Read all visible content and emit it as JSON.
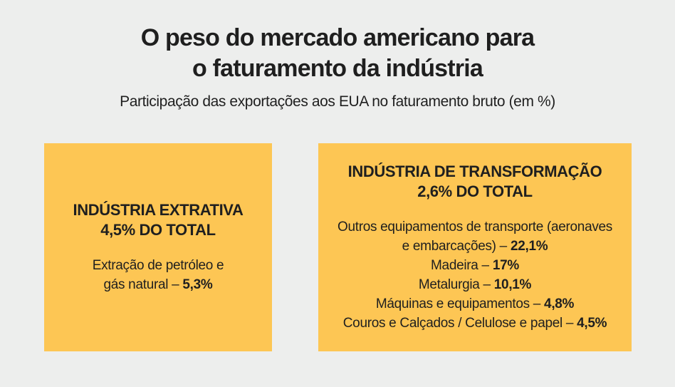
{
  "page": {
    "background_color": "#EDEEED",
    "card_color": "#FDC654",
    "text_color": "#1F1F1F"
  },
  "header": {
    "title_lines": [
      "O peso do mercado americano para",
      "o faturamento da indústria"
    ],
    "subtitle": "Participação das exportações aos EUA no faturamento bruto (em %)"
  },
  "cards": [
    {
      "heading_lines": [
        "INDÚSTRIA EXTRATIVA",
        "4,5% DO TOTAL"
      ],
      "items": [
        {
          "label": "Extração de petróleo e gás natural – ",
          "value": "5,3%"
        }
      ]
    },
    {
      "heading_lines": [
        "INDÚSTRIA DE TRANSFORMAÇÃO",
        "2,6% DO TOTAL"
      ],
      "items": [
        {
          "label": "Outros equipamentos de transporte (aeronaves e embarcações) – ",
          "value": "22,1%"
        },
        {
          "label": "Madeira – ",
          "value": "17%"
        },
        {
          "label": "Metalurgia – ",
          "value": "10,1%"
        },
        {
          "label": "Máquinas e equipamentos – ",
          "value": "4,8%"
        },
        {
          "label": "Couros e Calçados / Celulose e papel – ",
          "value": "4,5%"
        }
      ]
    }
  ],
  "chart_data": {
    "type": "table",
    "title": "O peso do mercado americano para o faturamento da indústria",
    "subtitle": "Participação das exportações aos EUA no faturamento bruto (em %)",
    "unit": "%",
    "groups": [
      {
        "name": "Indústria extrativa",
        "share_of_total_pct": 4.5,
        "items": [
          {
            "category": "Extração de petróleo e gás natural",
            "value_pct": 5.3
          }
        ]
      },
      {
        "name": "Indústria de transformação",
        "share_of_total_pct": 2.6,
        "items": [
          {
            "category": "Outros equipamentos de transporte (aeronaves e embarcações)",
            "value_pct": 22.1
          },
          {
            "category": "Madeira",
            "value_pct": 17
          },
          {
            "category": "Metalurgia",
            "value_pct": 10.1
          },
          {
            "category": "Máquinas e equipamentos",
            "value_pct": 4.8
          },
          {
            "category": "Couros e Calçados / Celulose e papel",
            "value_pct": 4.5
          }
        ]
      }
    ]
  }
}
